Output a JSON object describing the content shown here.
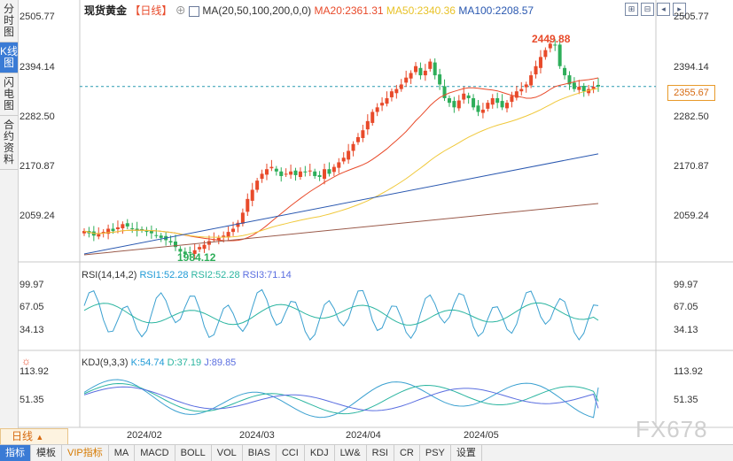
{
  "left_tabs": [
    "分时图",
    "K线图",
    "闪电图",
    "合约资料"
  ],
  "left_tab_active": 1,
  "header": {
    "title": "现货黄金",
    "timeframe": "【日线】",
    "ma_label": "MA(20,50,100,200,0,0)",
    "ma20": "MA20:2361.31",
    "ma50": "MA50:2340.36",
    "ma100": "MA100:2208.57"
  },
  "price_axis": [
    "2505.77",
    "2394.14",
    "2282.50",
    "2170.87",
    "2059.24"
  ],
  "current_price": "2355.67",
  "high_label": "2449.88",
  "low_label": "1984.12",
  "rsi": {
    "label": "RSI(14,14,2)",
    "rsi1": "RSI1:52.28",
    "rsi2": "RSI2:52.28",
    "rsi3": "RSI3:71.14",
    "axis": [
      "99.97",
      "67.05",
      "34.13"
    ]
  },
  "kdj": {
    "label": "KDJ(9,3,3)",
    "k": "K:54.74",
    "d": "D:37.19",
    "j": "J:89.85",
    "axis": [
      "113.92",
      "51.35"
    ]
  },
  "x_labels": [
    "2024/02",
    "2024/03",
    "2024/04",
    "2024/05"
  ],
  "period": "日线",
  "bottom_tabs": [
    "指标",
    "模板",
    "VIP指标",
    "MA",
    "MACD",
    "BOLL",
    "VOL",
    "BIAS",
    "CCI",
    "KDJ",
    "LW&",
    "RSI",
    "CR",
    "PSY",
    "设置"
  ],
  "watermark": "FX678",
  "chart_data": {
    "type": "candlestick",
    "ylim": [
      1984.12,
      2505.77
    ],
    "closes": [
      2040,
      2035,
      2030,
      2033,
      2038,
      2045,
      2040,
      2048,
      2055,
      2050,
      2045,
      2040,
      2042,
      2038,
      2035,
      2030,
      2025,
      2020,
      2015,
      2005,
      1995,
      1990,
      1992,
      1998,
      2005,
      2010,
      2018,
      2022,
      2025,
      2030,
      2038,
      2045,
      2058,
      2080,
      2110,
      2130,
      2150,
      2165,
      2175,
      2180,
      2170,
      2160,
      2165,
      2170,
      2162,
      2170,
      2168,
      2172,
      2160,
      2158,
      2175,
      2165,
      2180,
      2190,
      2200,
      2215,
      2230,
      2245,
      2260,
      2280,
      2300,
      2310,
      2320,
      2330,
      2345,
      2350,
      2360,
      2375,
      2385,
      2400,
      2380,
      2390,
      2410,
      2380,
      2360,
      2330,
      2320,
      2310,
      2325,
      2340,
      2330,
      2310,
      2300,
      2305,
      2320,
      2330,
      2320,
      2310,
      2320,
      2335,
      2345,
      2350,
      2360,
      2380,
      2400,
      2420,
      2435,
      2449,
      2445,
      2400,
      2380,
      2360,
      2350,
      2355,
      2345,
      2350,
      2355,
      2355.67
    ],
    "ma20_end": 2361.31,
    "ma50_end": 2340.36,
    "ma100_end": 2208.57,
    "rsi_end": [
      52.28,
      52.28,
      71.14
    ],
    "kdj_end": [
      54.74,
      37.19,
      89.85
    ]
  },
  "colors": {
    "up": "#e84a2a",
    "down": "#2eae5a",
    "ma20": "#e84a2a",
    "ma50": "#f0c83a",
    "ma100": "#2a58b0",
    "ma200": "#9a5a4a",
    "accent": "#3a7bd5"
  }
}
